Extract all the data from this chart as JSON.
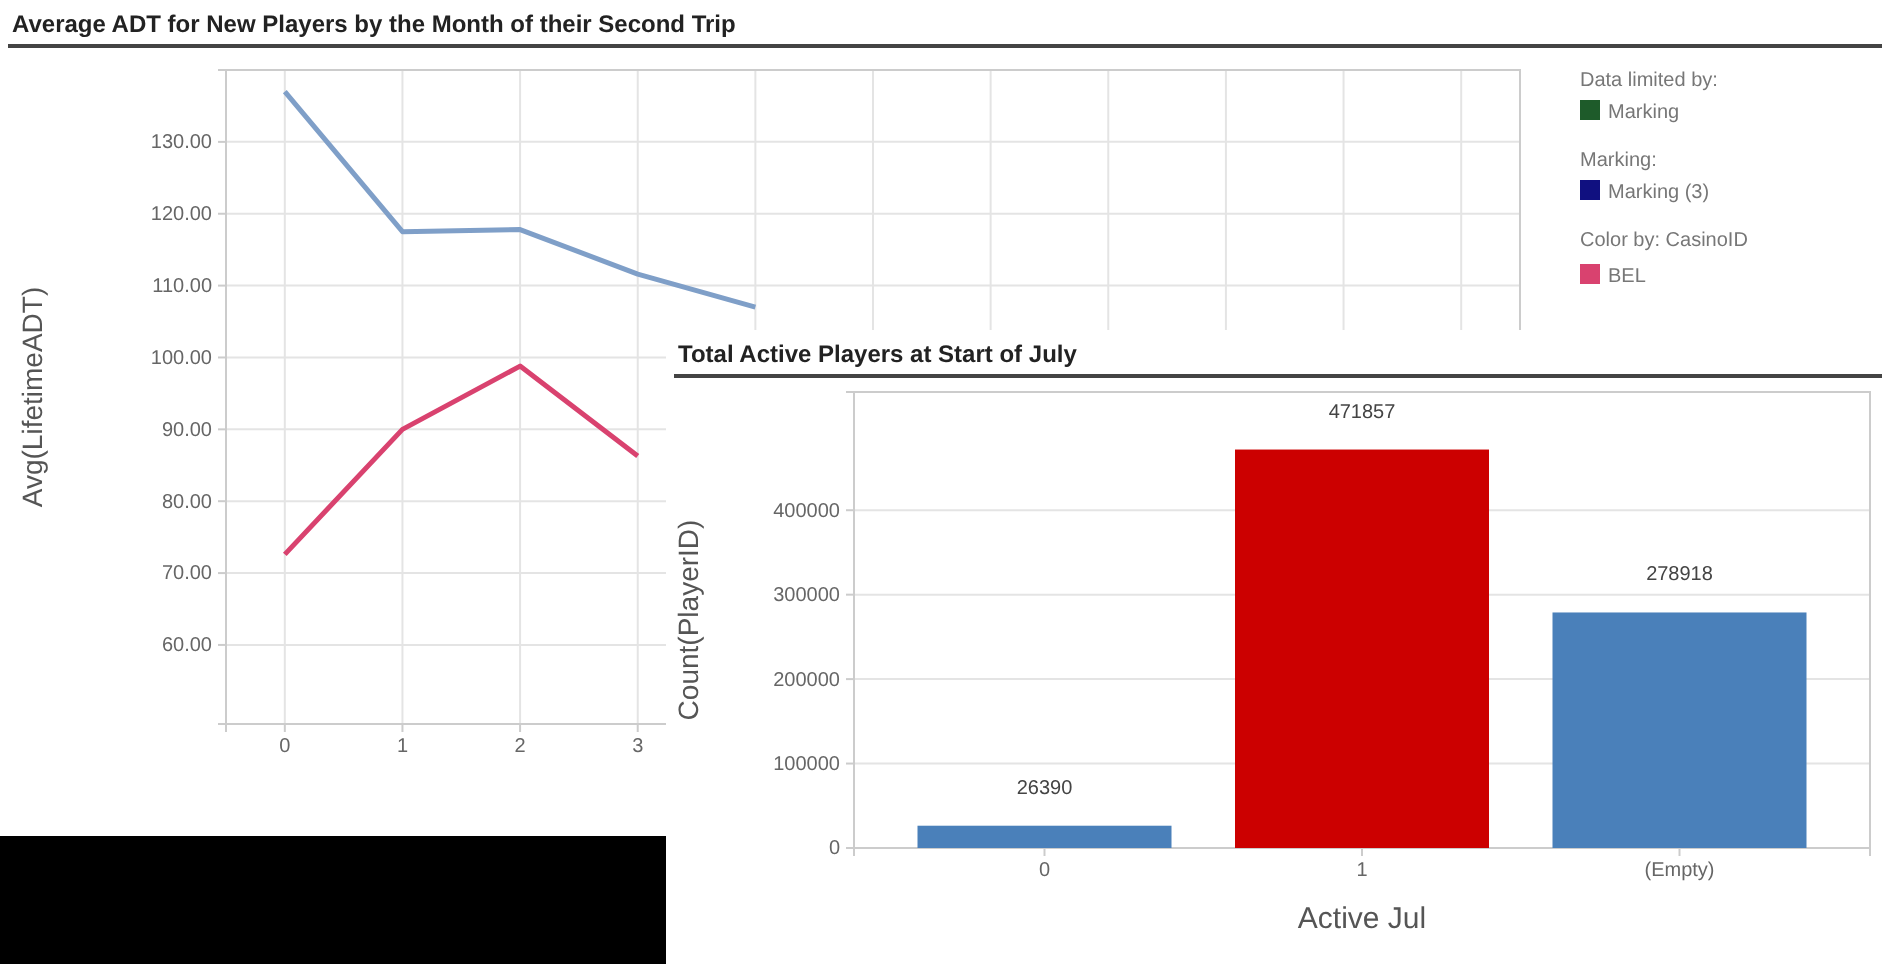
{
  "chart_data": [
    {
      "type": "line",
      "title": "Average ADT for New Players by the Month of their Second Trip",
      "ylabel": "Avg(LifetimeADT)",
      "categories": [
        "0",
        "1",
        "2",
        "3",
        null,
        null,
        null,
        null,
        null,
        null,
        null
      ],
      "series": [
        {
          "color": "#7f9fc8",
          "values": [
            137,
            117.5,
            117.8,
            111.6,
            107,
            null,
            null,
            null,
            null,
            null,
            null
          ]
        },
        {
          "name": "BEL",
          "color": "#d9426f",
          "values": [
            72.6,
            90,
            98.8,
            86.3,
            null,
            null,
            null,
            null,
            null,
            null,
            null
          ]
        }
      ],
      "ylim": [
        49,
        140
      ],
      "yticks": [
        {
          "value": 60,
          "label": "60.00"
        },
        {
          "value": 70,
          "label": "70.00"
        },
        {
          "value": 80,
          "label": "80.00"
        },
        {
          "value": 90,
          "label": "90.00"
        },
        {
          "value": 100,
          "label": "100.00"
        },
        {
          "value": 110,
          "label": "110.00"
        },
        {
          "value": 120,
          "label": "120.00"
        },
        {
          "value": 130,
          "label": "130.00"
        }
      ],
      "grid": true,
      "legend": "right",
      "legend_title": "Color by: CasinoID",
      "annotations": [
        "Data limited by:",
        "Marking",
        "Marking:",
        "Marking (3)"
      ]
    },
    {
      "type": "bar",
      "title": "Total Active Players at Start of July",
      "xlabel": "Active Jul",
      "ylabel": "Count(PlayerID)",
      "categories": [
        "0",
        "1",
        "(Empty)"
      ],
      "values": [
        26390,
        471857,
        278918
      ],
      "colors": [
        "#4a80ba",
        "#cc0000",
        "#4a80ba"
      ],
      "ylim": [
        0,
        540000
      ],
      "yticks": [
        0,
        100000,
        200000,
        300000,
        400000
      ],
      "grid": "y",
      "data_labels": true
    }
  ]
}
